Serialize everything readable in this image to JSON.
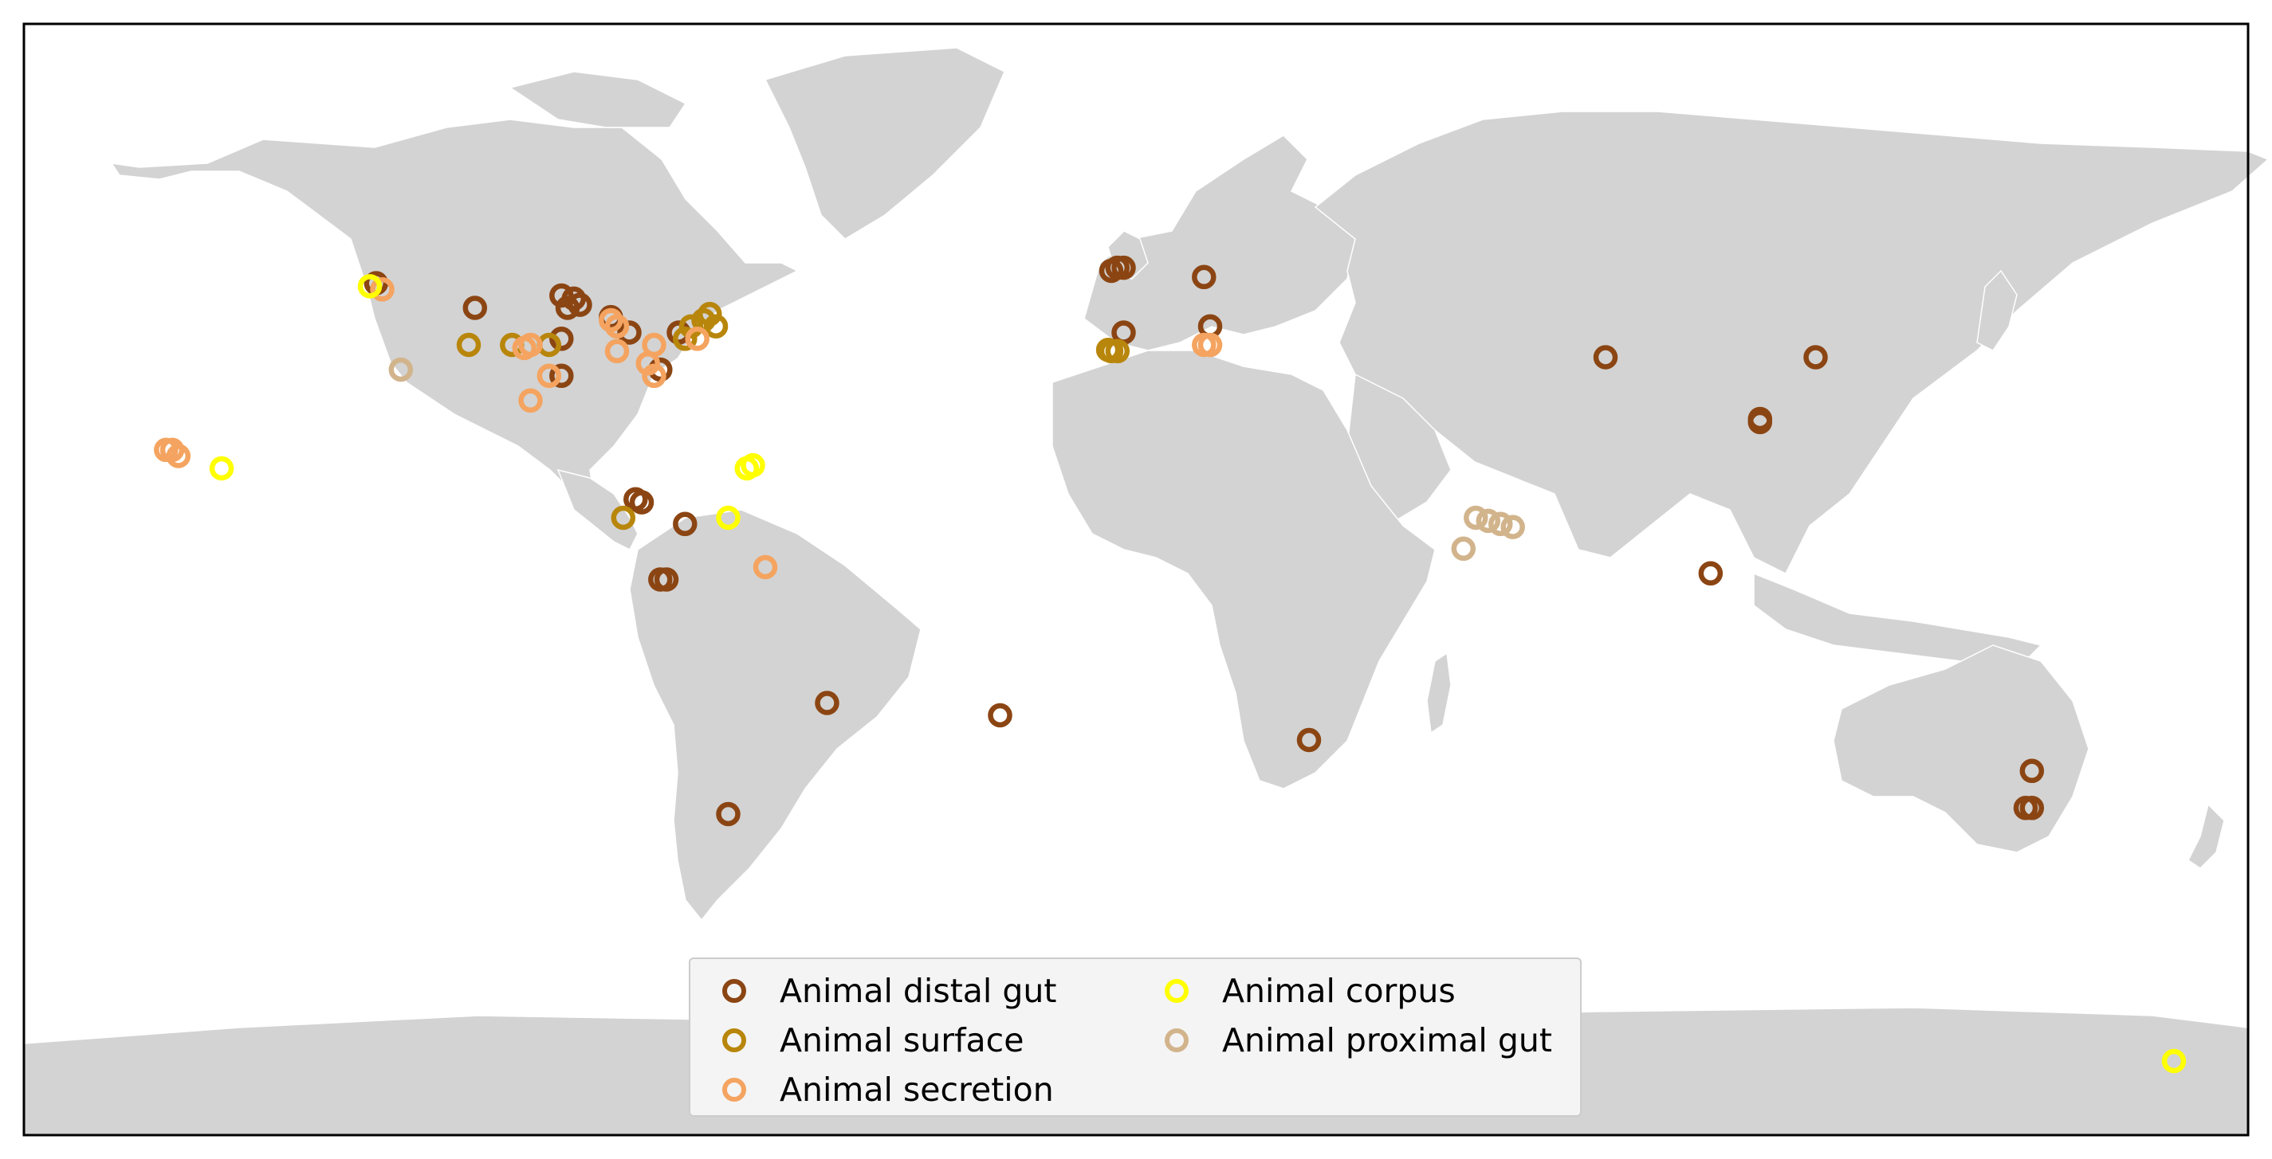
{
  "map": {
    "projection": "Plate Carree (equirectangular)",
    "land_color": "#d3d3d3",
    "border_color": "#ffffff",
    "frame_color": "#000000"
  },
  "legend": {
    "items": [
      {
        "key": "distal_gut",
        "label": "Animal distal gut",
        "color": "#8B4513"
      },
      {
        "key": "surface",
        "label": "Animal surface",
        "color": "#B8860B"
      },
      {
        "key": "secretion",
        "label": "Animal secretion",
        "color": "#F4A460"
      },
      {
        "key": "corpus",
        "label": "Animal corpus",
        "color": "#FFFF00"
      },
      {
        "key": "proximal_gut",
        "label": "Animal proximal gut",
        "color": "#D2B48C"
      }
    ]
  },
  "chart_data": {
    "type": "scatter",
    "xlim": [
      -180,
      180
    ],
    "ylim": [
      -90,
      90
    ],
    "grid": false,
    "legend_position": "lower-center",
    "series": [
      {
        "name": "Animal distal gut",
        "color": "#8B4513",
        "points": [
          [
            -123,
            48
          ],
          [
            -107,
            44
          ],
          [
            -93,
            46
          ],
          [
            -91,
            45.5
          ],
          [
            -92,
            44
          ],
          [
            -90,
            44.5
          ],
          [
            -85,
            42.5
          ],
          [
            -82,
            40
          ],
          [
            -93,
            39
          ],
          [
            -74,
            40
          ],
          [
            -93,
            33
          ],
          [
            -77,
            34
          ],
          [
            -81,
            13
          ],
          [
            -80,
            12.5
          ],
          [
            -73,
            9
          ],
          [
            -77,
            0
          ],
          [
            -76,
            0
          ],
          [
            -50,
            -20
          ],
          [
            -66,
            -38
          ],
          [
            -4,
            50
          ],
          [
            -3,
            50.5
          ],
          [
            -2,
            50.5
          ],
          [
            11,
            49
          ],
          [
            -2,
            40
          ],
          [
            12,
            41
          ],
          [
            76,
            36
          ],
          [
            110,
            36
          ],
          [
            101,
            26
          ],
          [
            101,
            25.5
          ],
          [
            93,
            1
          ],
          [
            -22,
            -22
          ]
        ]
      },
      {
        "name": "Animal surface",
        "color": "#B8860B",
        "points": [
          [
            -108,
            38
          ],
          [
            -101,
            38
          ],
          [
            -95,
            38
          ],
          [
            -72,
            41
          ],
          [
            -70,
            42
          ],
          [
            -69,
            43
          ],
          [
            -68,
            41
          ],
          [
            -73,
            39
          ],
          [
            -3,
            37
          ],
          [
            -4,
            37
          ],
          [
            -4.5,
            37.2
          ],
          [
            -83,
            10
          ]
        ]
      },
      {
        "name": "Animal secretion",
        "color": "#F4A460",
        "points": [
          [
            -122,
            47
          ],
          [
            -85,
            42
          ],
          [
            -84,
            41
          ],
          [
            -78,
            38
          ],
          [
            -71,
            39
          ],
          [
            -98,
            38
          ],
          [
            -99,
            37.5
          ],
          [
            -84,
            37
          ],
          [
            -79,
            35
          ],
          [
            -78,
            33
          ],
          [
            -95,
            33
          ],
          [
            -98,
            29
          ],
          [
            -157,
            21
          ],
          [
            -156,
            21
          ],
          [
            -155,
            20
          ],
          [
            -60,
            2
          ],
          [
            11,
            38
          ],
          [
            12,
            38
          ]
        ]
      },
      {
        "name": "Animal corpus",
        "color": "#FFFF00",
        "points": [
          [
            -124,
            47.5
          ],
          [
            -148,
            18
          ],
          [
            -62,
            18.5
          ],
          [
            -63,
            18
          ],
          [
            -66,
            10
          ],
          [
            168,
            -78
          ]
        ]
      },
      {
        "name": "Animal proximal gut",
        "color": "#D2B48C",
        "points": [
          [
            -119,
            34
          ],
          [
            55,
            10
          ],
          [
            57,
            9.5
          ],
          [
            59,
            9
          ],
          [
            61,
            8.5
          ],
          [
            53,
            5
          ]
        ]
      }
    ],
    "extra_points_au_za": [
      {
        "series": "Animal distal gut",
        "points": [
          [
            28,
            -26
          ],
          [
            145,
            -31
          ],
          [
            144,
            -37
          ],
          [
            145,
            -37
          ]
        ]
      }
    ]
  }
}
